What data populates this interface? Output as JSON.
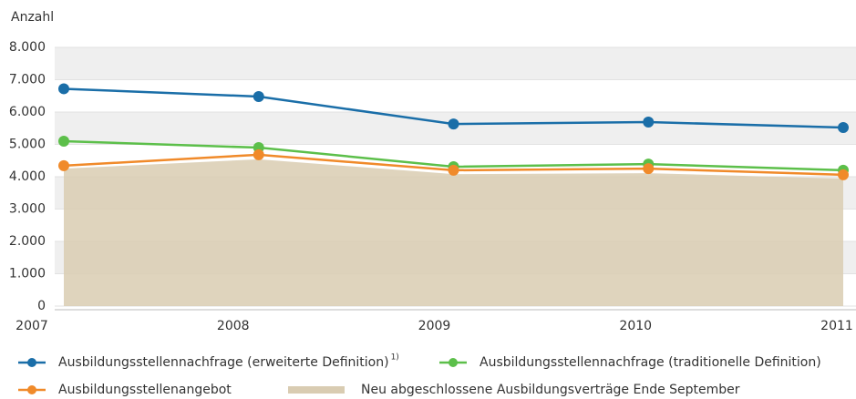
{
  "chart_data": {
    "type": "line",
    "ylabel": "Anzahl",
    "x": [
      2007,
      2008,
      2009,
      2010,
      2011
    ],
    "xlim": [
      2007,
      2011
    ],
    "xticks": [
      2007,
      2008,
      2009,
      2010,
      2011
    ],
    "ylim": [
      0,
      8000
    ],
    "yticks": [
      0,
      {
        "value": 1000,
        "label": "1.000"
      },
      {
        "value": 2000,
        "label": "2.000"
      },
      {
        "value": 3000,
        "label": "3.000"
      },
      {
        "value": 4000,
        "label": "4.000"
      },
      {
        "value": 5000,
        "label": "5.000"
      },
      {
        "value": 6000,
        "label": "6.000"
      },
      {
        "value": 7000,
        "label": "7.000"
      },
      {
        "value": 8000,
        "label": "8.000"
      }
    ],
    "grid": true,
    "series": [
      {
        "name": "Ausbildungsstellennachfrage (erweiterte Definition)",
        "note": "1)",
        "color": "#1a6ea8",
        "style": "line",
        "values": [
          6720,
          6480,
          5630,
          5690,
          5520
        ]
      },
      {
        "name": "Ausbildungsstellennachfrage (traditionelle Definition)",
        "color": "#5cbf4a",
        "style": "line",
        "values": [
          5100,
          4900,
          4310,
          4390,
          4200
        ]
      },
      {
        "name": "Ausbildungsstellenangebot",
        "color": "#f08a2a",
        "style": "line",
        "values": [
          4340,
          4680,
          4200,
          4250,
          4060
        ]
      },
      {
        "name": "Neu abgeschlossene Ausbildungsverträge Ende September",
        "color": "#d9ccb2",
        "style": "area",
        "values": [
          4250,
          4540,
          4080,
          4110,
          3940
        ]
      }
    ]
  }
}
